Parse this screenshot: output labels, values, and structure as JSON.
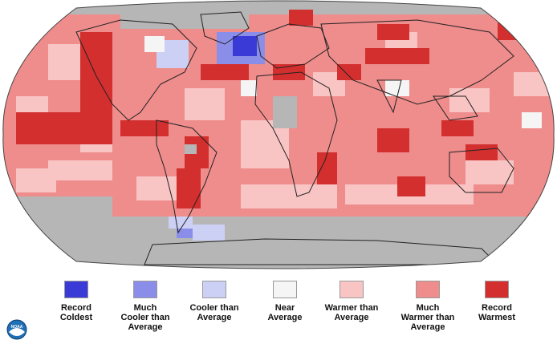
{
  "map": {
    "projection": "robinson",
    "colors": {
      "ocean_no_data": "#b6b6b6",
      "land_no_data": "#b6b6b6",
      "border": "#222222",
      "record_warmest": "#d32f2f",
      "much_warmer": "#ef8c8c",
      "warmer": "#f9c4c4",
      "near_average": "#f5f5f5",
      "cooler": "#cdd0f5",
      "much_cooler": "#8b8ee8",
      "record_coldest": "#3a3ad6"
    }
  },
  "legend": {
    "items": [
      {
        "key": "record_coldest",
        "label": "Record\nColdest",
        "color": "#3a3ad6"
      },
      {
        "key": "much_cooler",
        "label": "Much\nCooler than\nAverage",
        "color": "#8b8ee8"
      },
      {
        "key": "cooler",
        "label": "Cooler than\nAverage",
        "color": "#cdd0f5"
      },
      {
        "key": "near_average",
        "label": "Near\nAverage",
        "color": "#f5f5f5"
      },
      {
        "key": "warmer",
        "label": "Warmer than\nAverage",
        "color": "#f9c4c4"
      },
      {
        "key": "much_warmer",
        "label": "Much\nWarmer than\nAverage",
        "color": "#ef8c8c"
      },
      {
        "key": "record_warmest",
        "label": "Record\nWarmest",
        "color": "#d32f2f"
      }
    ]
  },
  "logo": {
    "icon": "noaa-logo-icon",
    "text": "NOAA"
  }
}
